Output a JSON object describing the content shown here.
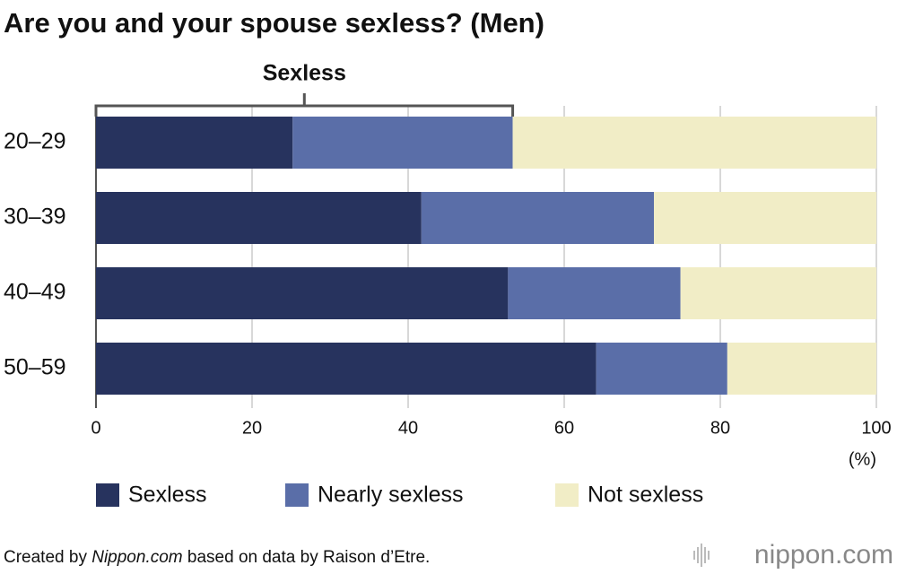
{
  "chart_data": {
    "type": "stacked-bar-horizontal",
    "title": "Are you and your spouse sexless? (Men)",
    "annotation": "Sexless",
    "categories": [
      "20–29",
      "30–39",
      "40–49",
      "50–59"
    ],
    "series": [
      {
        "name": "Sexless",
        "color": "#27335e",
        "values": [
          25.2,
          41.7,
          52.8,
          64.1
        ]
      },
      {
        "name": "Nearly sexless",
        "color": "#5a6ea8",
        "values": [
          28.2,
          29.8,
          22.1,
          16.8
        ]
      },
      {
        "name": "Not sexless",
        "color": "#f1edc6",
        "values": [
          46.6,
          28.5,
          25.1,
          19.1
        ]
      }
    ],
    "xlim": [
      0,
      100
    ],
    "xticks": [
      0,
      20,
      40,
      60,
      80,
      100
    ],
    "x_unit": "(%)",
    "grid": true,
    "source": [
      "Created by ",
      "Nippon.com",
      " based on data by Raison d’Etre."
    ],
    "logo": "nippon.com"
  }
}
